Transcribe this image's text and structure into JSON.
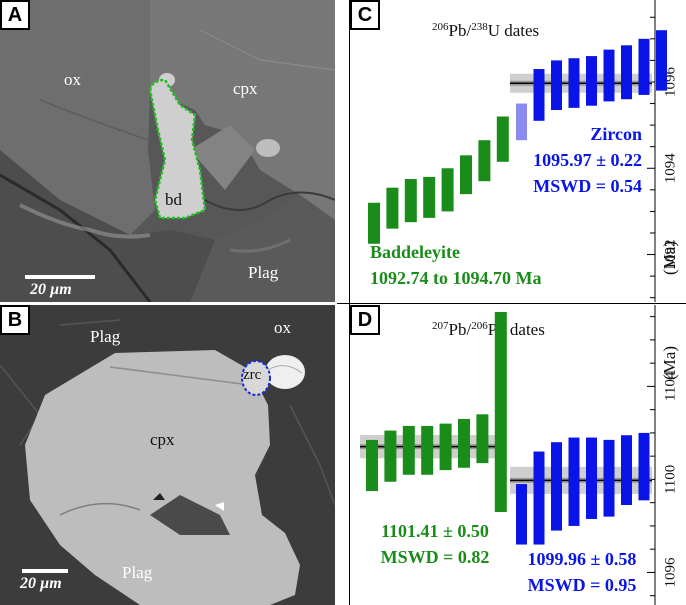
{
  "panels": {
    "A": {
      "label": "A",
      "minerals": {
        "ox": "ox",
        "cpx": "cpx",
        "bd": "bd",
        "plag": "Plag"
      },
      "scale": "20 µm"
    },
    "B": {
      "label": "B",
      "minerals": {
        "plag_top": "Plag",
        "ox": "ox",
        "zrc": "zrc",
        "cpx": "cpx",
        "plag_bottom": "Plag"
      },
      "scale": "20 µm"
    },
    "C": {
      "label": "C"
    },
    "D": {
      "label": "D"
    }
  },
  "colors": {
    "baddeleyite": "#1a8c1a",
    "zircon": "#0a14e6",
    "zircon_excluded": "#8a8af0",
    "band": "#c8c8c8"
  },
  "chart_data": [
    {
      "type": "ranked-date-bars",
      "title_sup": "206",
      "title_mid": "Pb/",
      "title_sup2": "238",
      "title_end": "U dates",
      "ylabel": "(Ma)",
      "ylim": [
        1090.9,
        1097.9
      ],
      "ticks": [
        1092,
        1094,
        1096
      ],
      "series": [
        {
          "name": "Baddeleyite",
          "color": "#1a8c1a",
          "bars": [
            [
              1092.25,
              1093.2
            ],
            [
              1092.6,
              1093.55
            ],
            [
              1092.75,
              1093.75
            ],
            [
              1092.85,
              1093.8
            ],
            [
              1093.0,
              1094.0
            ],
            [
              1093.4,
              1094.3
            ],
            [
              1093.7,
              1094.65
            ],
            [
              1094.15,
              1095.2
            ]
          ],
          "label_lines": [
            "Baddeleyite",
            "1092.74 to 1094.70 Ma"
          ]
        },
        {
          "name": "Zircon",
          "color": "#0a14e6",
          "weighted_mean": 1095.97,
          "mean_err": 0.22,
          "excluded": [
            [
              1094.65,
              1095.5
            ]
          ],
          "bars": [
            [
              1095.1,
              1096.3
            ],
            [
              1095.35,
              1096.5
            ],
            [
              1095.4,
              1096.55
            ],
            [
              1095.45,
              1096.6
            ],
            [
              1095.55,
              1096.75
            ],
            [
              1095.6,
              1096.85
            ],
            [
              1095.7,
              1097.0
            ],
            [
              1095.8,
              1097.2
            ]
          ],
          "label_lines": [
            "Zircon",
            "1095.97 ± 0.22",
            "MSWD = 0.54"
          ]
        }
      ]
    },
    {
      "type": "ranked-date-bars",
      "title_sup": "207",
      "title_mid": "Pb/",
      "title_sup2": "206",
      "title_end": "Pb dates",
      "ylabel": "(Ma)",
      "ylim": [
        1094.6,
        1107.5
      ],
      "ticks": [
        1096,
        1100,
        1104
      ],
      "series": [
        {
          "name": "Baddeleyite",
          "color": "#1a8c1a",
          "weighted_mean": 1101.41,
          "mean_err": 0.5,
          "bars": [
            [
              1099.5,
              1101.7
            ],
            [
              1099.9,
              1102.1
            ],
            [
              1100.2,
              1102.3
            ],
            [
              1100.2,
              1102.3
            ],
            [
              1100.4,
              1102.4
            ],
            [
              1100.5,
              1102.6
            ],
            [
              1100.7,
              1102.8
            ],
            [
              1098.6,
              1107.2
            ]
          ],
          "label_lines": [
            "1101.41 ± 0.50",
            "MSWD = 0.82"
          ]
        },
        {
          "name": "Zircon",
          "color": "#0a14e6",
          "weighted_mean": 1099.96,
          "mean_err": 0.58,
          "bars": [
            [
              1097.2,
              1099.8
            ],
            [
              1097.2,
              1101.2
            ],
            [
              1097.8,
              1101.6
            ],
            [
              1098.0,
              1101.8
            ],
            [
              1098.3,
              1101.8
            ],
            [
              1098.4,
              1101.7
            ],
            [
              1098.9,
              1101.9
            ],
            [
              1099.1,
              1102.0
            ]
          ],
          "label_lines": [
            "1099.96 ± 0.58",
            "MSWD = 0.95"
          ]
        }
      ]
    }
  ]
}
